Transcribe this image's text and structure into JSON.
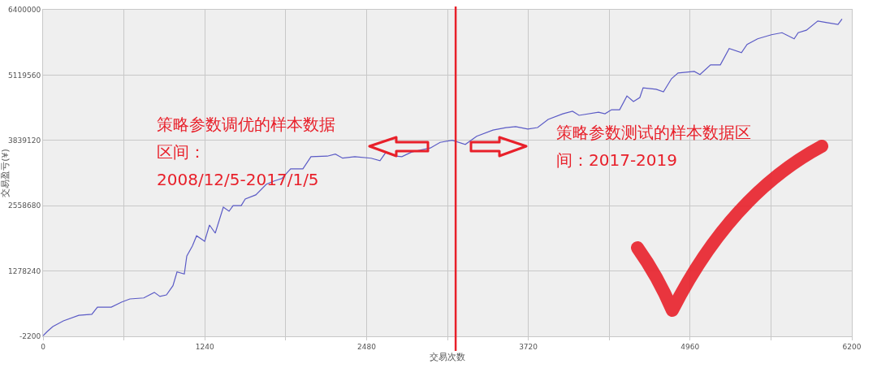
{
  "chart_data": {
    "type": "line",
    "xlabel": "交易次数",
    "ylabel": "交易盈亏(¥)",
    "series": [
      {
        "color": "#5b5bc6",
        "x": [
          0,
          31,
          75,
          156,
          274,
          374,
          417,
          523,
          604,
          666,
          772,
          853,
          896,
          946,
          996,
          1027,
          1083,
          1102,
          1145,
          1177,
          1239,
          1276,
          1320,
          1382,
          1426,
          1457,
          1519,
          1550,
          1631,
          1712,
          1768,
          1830,
          1898,
          1992,
          2054,
          2179,
          2241,
          2297,
          2390,
          2515,
          2583,
          2627,
          2702,
          2751,
          2826,
          2969,
          3044,
          3137,
          3237,
          3324,
          3449,
          3548,
          3623,
          3716,
          3791,
          3872,
          3984,
          4059,
          4109,
          4258,
          4308,
          4358,
          4420,
          4476,
          4526,
          4575,
          4600,
          4700,
          4756,
          4818,
          4868,
          4992,
          5036,
          5117,
          5192,
          5260,
          5354,
          5397,
          5478,
          5584,
          5665,
          5758,
          5789,
          5852,
          5939,
          6001,
          6094,
          6125
        ],
        "values": [
          10000,
          90000,
          190000,
          300000,
          410000,
          430000,
          570000,
          570000,
          670000,
          730000,
          750000,
          860000,
          780000,
          810000,
          990000,
          1260000,
          1220000,
          1570000,
          1770000,
          1970000,
          1860000,
          2180000,
          2020000,
          2530000,
          2450000,
          2560000,
          2560000,
          2690000,
          2770000,
          2980000,
          3040000,
          3090000,
          3280000,
          3280000,
          3520000,
          3530000,
          3570000,
          3490000,
          3520000,
          3490000,
          3440000,
          3600000,
          3530000,
          3520000,
          3610000,
          3690000,
          3800000,
          3840000,
          3760000,
          3920000,
          4040000,
          4090000,
          4110000,
          4060000,
          4090000,
          4250000,
          4360000,
          4410000,
          4330000,
          4390000,
          4360000,
          4440000,
          4440000,
          4710000,
          4600000,
          4680000,
          4870000,
          4840000,
          4790000,
          5050000,
          5160000,
          5190000,
          5130000,
          5320000,
          5320000,
          5640000,
          5560000,
          5720000,
          5830000,
          5910000,
          5950000,
          5830000,
          5950000,
          6000000,
          6180000,
          6150000,
          6110000,
          6220000
        ]
      }
    ],
    "xlim": [
      0,
      6200
    ],
    "xticks": [
      0,
      {
        "value": 620,
        "label": null
      },
      1240,
      {
        "value": 1860,
        "label": null
      },
      2480,
      {
        "value": 3100,
        "label": null
      },
      3720,
      {
        "value": 4340,
        "label": null
      },
      4960,
      {
        "value": 5580,
        "label": null
      },
      6200
    ],
    "ylim": [
      -2200,
      6400000
    ],
    "yticks": [
      -2200,
      1278240,
      2558680,
      3839120,
      5119560,
      6400000
    ],
    "grid": true,
    "marker": "none",
    "line_style": "solid",
    "ref_lines": [
      {
        "axis": "x",
        "value": 3163,
        "color": "#e8202a",
        "line_style": "solid"
      }
    ],
    "annotations": [
      "策略参数调优的样本数据区间：2008/12/5-2017/1/5",
      "策略参数测试的样本数据区间：2017-2019"
    ]
  }
}
